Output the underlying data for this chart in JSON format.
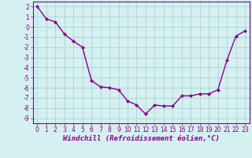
{
  "x": [
    0,
    1,
    2,
    3,
    4,
    5,
    6,
    7,
    8,
    9,
    10,
    11,
    12,
    13,
    14,
    15,
    16,
    17,
    18,
    19,
    20,
    21,
    22,
    23
  ],
  "y": [
    2.0,
    0.8,
    0.5,
    -0.7,
    -1.4,
    -2.0,
    -5.3,
    -5.9,
    -6.0,
    -6.2,
    -7.3,
    -7.7,
    -8.6,
    -7.7,
    -7.8,
    -7.8,
    -6.8,
    -6.8,
    -6.6,
    -6.6,
    -6.2,
    -3.3,
    -0.9,
    -0.4
  ],
  "line_color": "#880088",
  "marker": "D",
  "marker_size": 2.0,
  "bg_color": "#d4f0f0",
  "grid_color": "#aacccc",
  "xlabel": "Windchill (Refroidissement éolien,°C)",
  "xlim": [
    -0.5,
    23.5
  ],
  "ylim": [
    -9.5,
    2.5
  ],
  "yticks": [
    2,
    1,
    0,
    -1,
    -2,
    -3,
    -4,
    -5,
    -6,
    -7,
    -8,
    -9
  ],
  "xticks": [
    0,
    1,
    2,
    3,
    4,
    5,
    6,
    7,
    8,
    9,
    10,
    11,
    12,
    13,
    14,
    15,
    16,
    17,
    18,
    19,
    20,
    21,
    22,
    23
  ],
  "tick_fontsize": 5.5,
  "xlabel_fontsize": 6.5,
  "line_width": 1.0
}
